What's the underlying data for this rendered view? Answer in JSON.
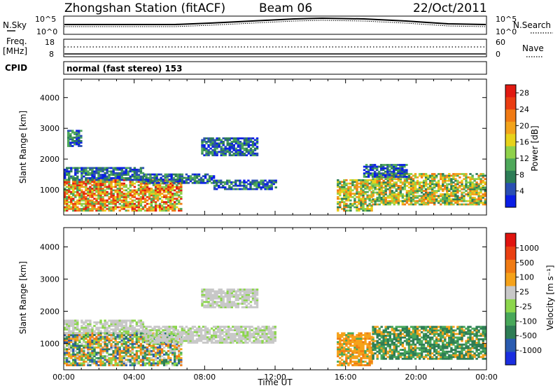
{
  "header": {
    "title": "Zhongshan Station (fitACF)",
    "beam": "Beam 06",
    "date": "22/Oct/2011"
  },
  "strip_panels": {
    "sky_noise": {
      "left_label": "N.Sky",
      "right_label": "N.Search",
      "left_ticks": [
        "10^5",
        "10^0"
      ],
      "right_ticks": [
        "10^5",
        "10^0"
      ]
    },
    "frequency": {
      "left_label_top": "Freq.",
      "left_label_bottom": "[MHz]",
      "right_label": "Nave",
      "left_ticks": [
        "18",
        "8"
      ],
      "right_ticks": [
        "60",
        "0"
      ]
    },
    "cpid": {
      "left_label": "CPID",
      "text": "normal (fast stereo) 153"
    }
  },
  "chart_data": [
    {
      "type": "heatmap",
      "name": "power",
      "ylabel": "Slant Range [km]",
      "xlabel": "",
      "xlim_hours": [
        0,
        24
      ],
      "ylim_km": [
        180,
        4600
      ],
      "y_ticks": [
        "1000",
        "2000",
        "3000",
        "4000"
      ],
      "colorbar": {
        "label": "Power [dB]",
        "ticks": [
          "4",
          "8",
          "12",
          "16",
          "20",
          "24",
          "28"
        ],
        "colors": [
          "#0a1ee6",
          "#2a4fb3",
          "#2d7d56",
          "#4ea85a",
          "#8fd14a",
          "#e7d21a",
          "#f2a31b",
          "#f07a14",
          "#ea3d12",
          "#e11a12"
        ],
        "range": [
          0,
          30
        ]
      },
      "regions": [
        {
          "t": [
            0.0,
            6.7
          ],
          "r": [
            300,
            1300
          ],
          "level": "high"
        },
        {
          "t": [
            0.0,
            4.5
          ],
          "r": [
            1300,
            1700
          ],
          "level": "low"
        },
        {
          "t": [
            4.5,
            8.5
          ],
          "r": [
            1200,
            1500
          ],
          "level": "low"
        },
        {
          "t": [
            7.8,
            11.0
          ],
          "r": [
            2100,
            2700
          ],
          "level": "low"
        },
        {
          "t": [
            8.5,
            12.0
          ],
          "r": [
            1000,
            1300
          ],
          "level": "low"
        },
        {
          "t": [
            0.2,
            1.0
          ],
          "r": [
            2400,
            2900
          ],
          "level": "low"
        },
        {
          "t": [
            15.5,
            17.5
          ],
          "r": [
            300,
            1300
          ],
          "level": "mid"
        },
        {
          "t": [
            17.5,
            23.9
          ],
          "r": [
            500,
            1500
          ],
          "level": "mid"
        },
        {
          "t": [
            17.0,
            19.5
          ],
          "r": [
            1400,
            1800
          ],
          "level": "low"
        }
      ]
    },
    {
      "type": "heatmap",
      "name": "velocity",
      "ylabel": "Slant Range [km]",
      "xlabel": "Time UT",
      "xlim_hours": [
        0,
        24
      ],
      "ylim_km": [
        180,
        4600
      ],
      "y_ticks": [
        "1000",
        "2000",
        "3000",
        "4000"
      ],
      "x_ticks": [
        "00:00",
        "04:00",
        "08:00",
        "12:00",
        "16:00",
        "20:00",
        "00:00"
      ],
      "colorbar": {
        "label": "Velocity [m s⁻¹]",
        "ticks": [
          "1000",
          "500",
          "100",
          "25",
          "-25",
          "-100",
          "-500",
          "-1000"
        ],
        "colors": [
          "#1a2ee0",
          "#2a5bb0",
          "#2e7d55",
          "#48a85a",
          "#8cd64c",
          "#c8c8c8",
          "#f5a21a",
          "#f07b14",
          "#ea4012",
          "#e0140f"
        ]
      },
      "regions": [
        {
          "t": [
            0.0,
            6.7
          ],
          "r": [
            300,
            1300
          ],
          "level": "mixed"
        },
        {
          "t": [
            0.0,
            4.5
          ],
          "r": [
            1300,
            1700
          ],
          "level": "grey"
        },
        {
          "t": [
            4.5,
            12.0
          ],
          "r": [
            1000,
            1500
          ],
          "level": "grey"
        },
        {
          "t": [
            7.8,
            11.0
          ],
          "r": [
            2100,
            2700
          ],
          "level": "grey"
        },
        {
          "t": [
            15.5,
            17.5
          ],
          "r": [
            300,
            1300
          ],
          "level": "orange"
        },
        {
          "t": [
            17.5,
            23.9
          ],
          "r": [
            500,
            1500
          ],
          "level": "green"
        }
      ]
    }
  ]
}
